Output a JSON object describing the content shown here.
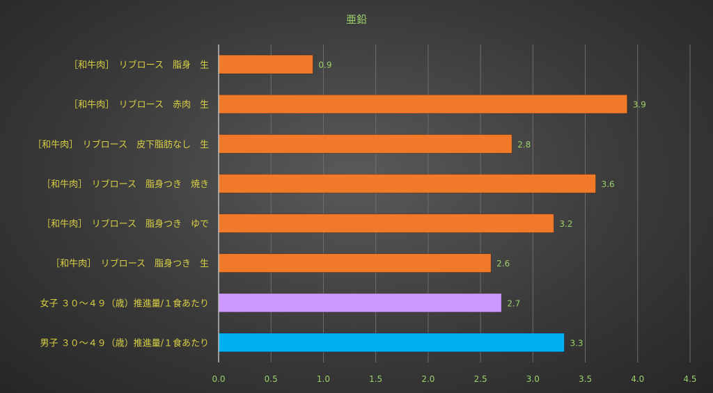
{
  "chart_data": {
    "type": "bar",
    "orientation": "horizontal",
    "title": "亜鉛",
    "xlabel": "",
    "ylabel": "",
    "xlim": [
      0,
      4.5
    ],
    "ticks": [
      "0.0",
      "0.5",
      "1.0",
      "1.5",
      "2.0",
      "2.5",
      "3.0",
      "3.5",
      "4.0",
      "4.5"
    ],
    "grid": true,
    "legend": "none",
    "categories": [
      "［和牛肉］　リブロース　脂身　生",
      "［和牛肉］　リブロース　赤肉　生",
      "［和牛肉］　リブロース　皮下脂肪なし　生",
      "［和牛肉］　リブロース　脂身つき　焼き",
      "［和牛肉］　リブロース　脂身つき　ゆで",
      "［和牛肉］　リブロース　脂身つき　生",
      "女子 ３０～４９（歳）推進量/１食あたり",
      "男子 ３０～４９（歳）推進量/１食あたり"
    ],
    "values": [
      0.9,
      3.9,
      2.8,
      3.6,
      3.2,
      2.6,
      2.7,
      3.3
    ],
    "value_labels": [
      "0.9",
      "3.9",
      "2.8",
      "3.6",
      "3.2",
      "2.6",
      "2.7",
      "3.3"
    ],
    "colors": [
      "#f07a2a",
      "#f07a2a",
      "#f07a2a",
      "#f07a2a",
      "#f07a2a",
      "#f07a2a",
      "#cc99ff",
      "#00b0f0"
    ]
  }
}
